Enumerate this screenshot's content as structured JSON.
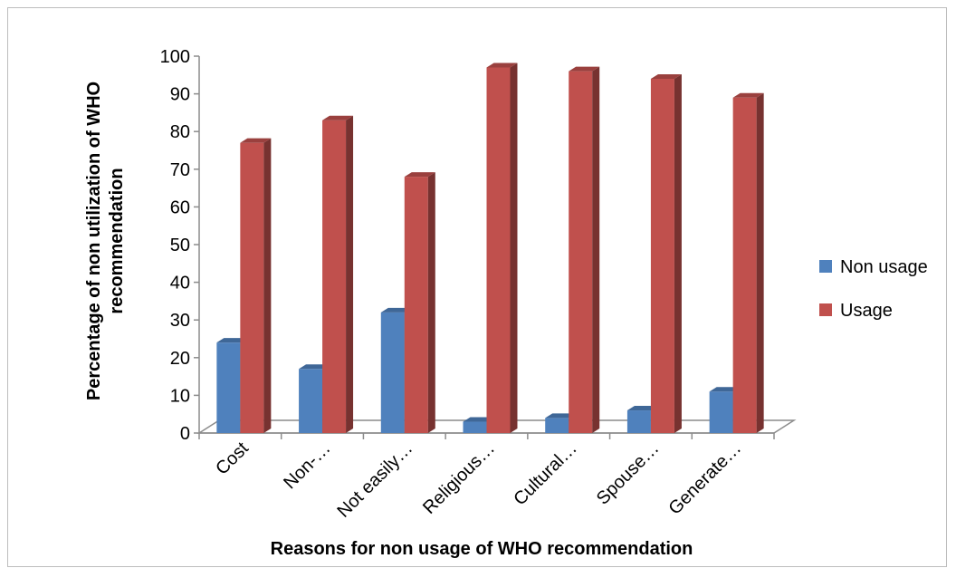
{
  "chart_data": {
    "type": "bar",
    "style": "3d-clustered-column",
    "categories": [
      "Cost",
      "Non-…",
      "Not easily…",
      "Religious…",
      "Cultural…",
      "Spouse…",
      "Generate…"
    ],
    "series": [
      {
        "name": "Non usage",
        "color": "#4F81BD",
        "values": [
          24,
          17,
          32,
          3,
          4,
          6,
          11
        ]
      },
      {
        "name": "Usage",
        "color": "#C0504D",
        "values": [
          77,
          83,
          68,
          97,
          96,
          94,
          89
        ]
      }
    ],
    "xlabel": "Reasons for non usage of WHO recommendation",
    "ylabel": "Percentage of non utilization of WHO recommendation",
    "ylim": [
      0,
      100
    ],
    "yticks": [
      "0",
      "10",
      "20",
      "30",
      "40",
      "50",
      "60",
      "70",
      "80",
      "90",
      "100"
    ],
    "grid": false,
    "legend_position": "right"
  }
}
